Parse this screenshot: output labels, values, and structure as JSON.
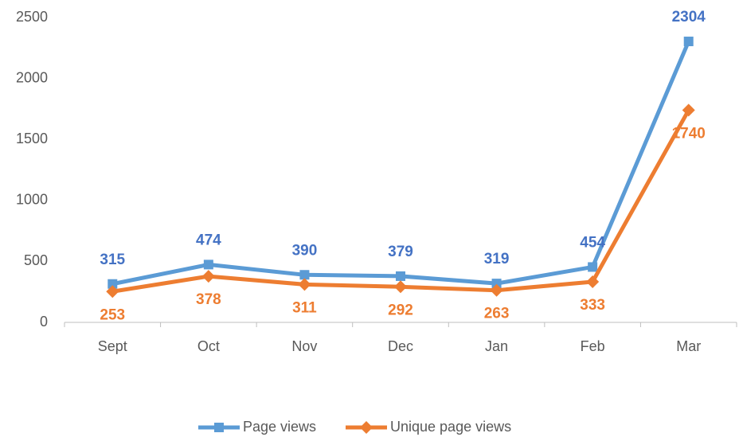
{
  "chart_data": {
    "type": "line",
    "categories": [
      "Sept",
      "Oct",
      "Nov",
      "Dec",
      "Jan",
      "Feb",
      "Mar"
    ],
    "series": [
      {
        "name": "Page views",
        "color": "#5b9bd5",
        "label_color": "#4472c4",
        "marker": "square",
        "values": [
          315,
          474,
          390,
          379,
          319,
          454,
          2304
        ]
      },
      {
        "name": "Unique page views",
        "color": "#ed7d31",
        "label_color": "#ed7d31",
        "marker": "diamond",
        "values": [
          253,
          378,
          311,
          292,
          263,
          333,
          1740
        ]
      }
    ],
    "ylim": [
      0,
      2500
    ],
    "yticks": [
      0,
      500,
      1000,
      1500,
      2000,
      2500
    ],
    "grid": false,
    "legend": "bottom"
  }
}
